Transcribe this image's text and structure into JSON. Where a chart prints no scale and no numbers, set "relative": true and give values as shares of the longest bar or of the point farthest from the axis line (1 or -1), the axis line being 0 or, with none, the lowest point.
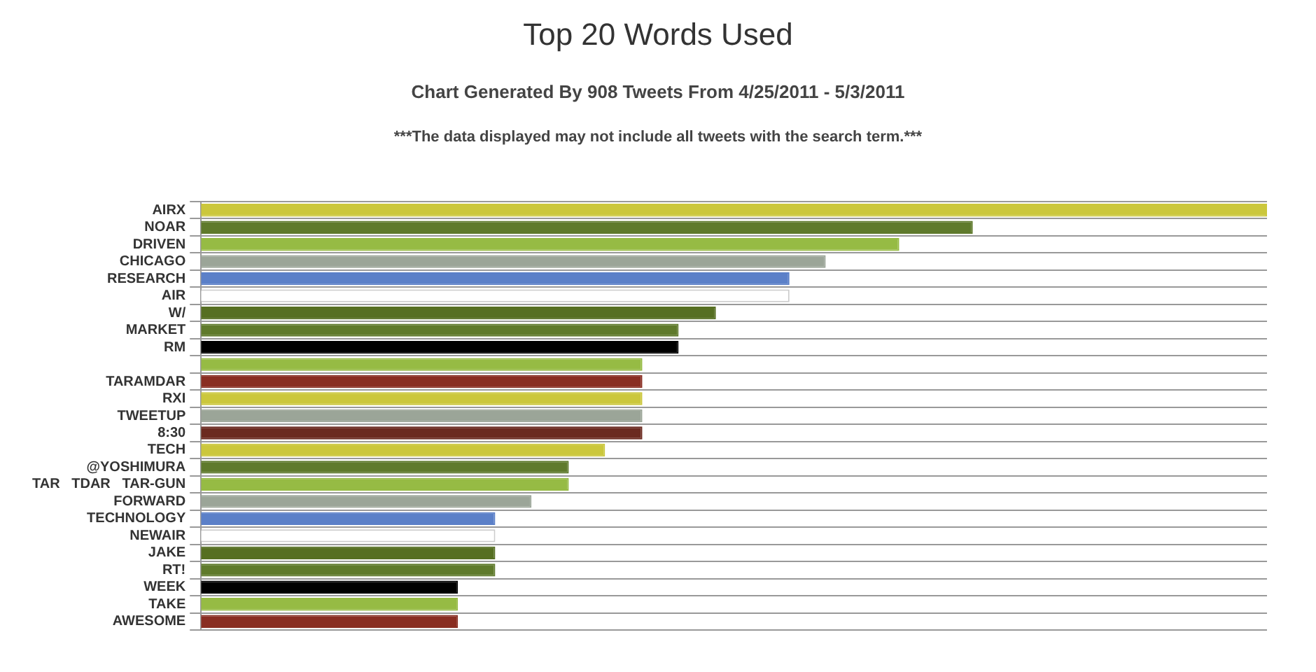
{
  "chart_data": {
    "type": "bar",
    "orientation": "horizontal",
    "relative": true,
    "title": "Top 20 Words Used",
    "subtitle": "Chart Generated By 908 Tweets From 4/25/2011 - 5/3/2011",
    "annotations": [
      "***The data displayed may not include all tweets with the search term.***"
    ],
    "categories": [
      "AIRX",
      "NOAR",
      "DRIVEN",
      "CHICAGO",
      "RESEARCH",
      "AIR",
      "W/",
      "MARKET",
      "RM",
      null,
      "TARAMDAR",
      "RXI",
      "TWEETUP",
      "8:30",
      "TECH",
      "@YOSHIMURA",
      "TAR   TDAR   TAR-GUN",
      "FORWARD",
      "TECHNOLOGY",
      "NEWAIR",
      "JAKE",
      "RT!",
      "WEEK",
      "TAKE",
      "AWESOME"
    ],
    "values": [
      1,
      0.724,
      0.655,
      0.586,
      0.552,
      0.552,
      0.483,
      0.448,
      0.448,
      0.414,
      0.414,
      0.414,
      0.414,
      0.414,
      0.379,
      0.345,
      0.345,
      0.31,
      0.276,
      0.276,
      0.276,
      0.276,
      0.241,
      0.241,
      0.241
    ],
    "colors": [
      "#cbc73c",
      "#5f7a2c",
      "#96bb44",
      "#9ba598",
      "#5b80c8",
      "#ffffff",
      "#566f22",
      "#5f7a2c",
      "#000000",
      "#96bb44",
      "#892e22",
      "#cbc73c",
      "#9ba598",
      "#6b2a20",
      "#cbc73c",
      "#5f7a2c",
      "#96bb44",
      "#9ba598",
      "#5b80c8",
      "#ffffff",
      "#566f22",
      "#5f7a2c",
      "#000000",
      "#96bb44",
      "#892e22"
    ],
    "grid": "y",
    "legend": false
  }
}
